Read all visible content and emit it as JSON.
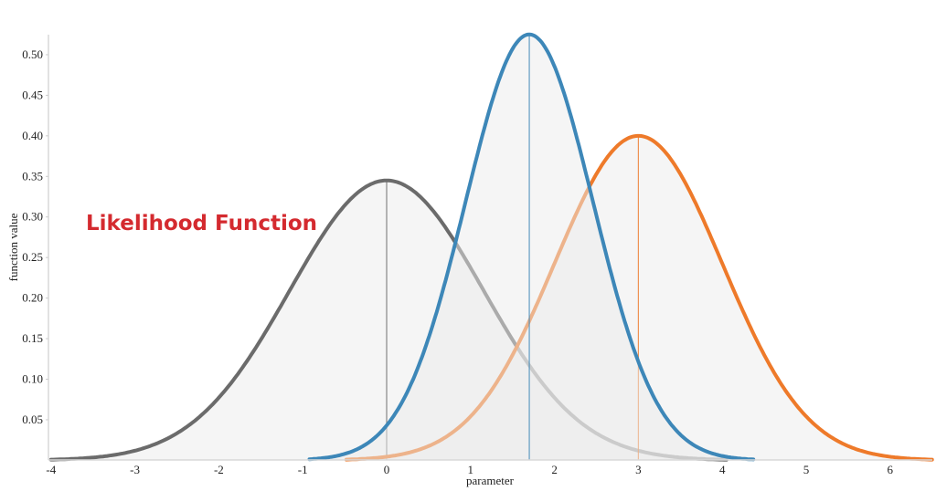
{
  "chart_data": {
    "type": "line",
    "title": "Likelihood Function",
    "title_color": "#d42a2f",
    "xlabel": "parameter",
    "ylabel": "function value",
    "xlim": [
      -4,
      6.5
    ],
    "ylim": [
      0,
      0.53
    ],
    "xticks": [
      "-4",
      "-3",
      "-2",
      "-1",
      "0",
      "1",
      "2",
      "3",
      "4",
      "5",
      "6"
    ],
    "yticks": [
      "0.05",
      "0.10",
      "0.15",
      "0.20",
      "0.25",
      "0.30",
      "0.35",
      "0.40",
      "0.45",
      "0.50"
    ],
    "grid": false,
    "series": [
      {
        "curve": "normal",
        "mean": 0,
        "peak": 0.345,
        "sd": 1.156,
        "x_range": [
          -4,
          4.05
        ],
        "color": "#6b6b6b"
      },
      {
        "curve": "normal",
        "mean": 3,
        "peak": 0.4,
        "sd": 1.0,
        "x_range": [
          -0.48,
          6.5
        ],
        "color": "#ee7a2a"
      },
      {
        "curve": "normal",
        "mean": 1.7,
        "peak": 0.525,
        "sd": 0.76,
        "x_range": [
          -0.92,
          4.37
        ],
        "color": "#3d87b8"
      }
    ]
  }
}
